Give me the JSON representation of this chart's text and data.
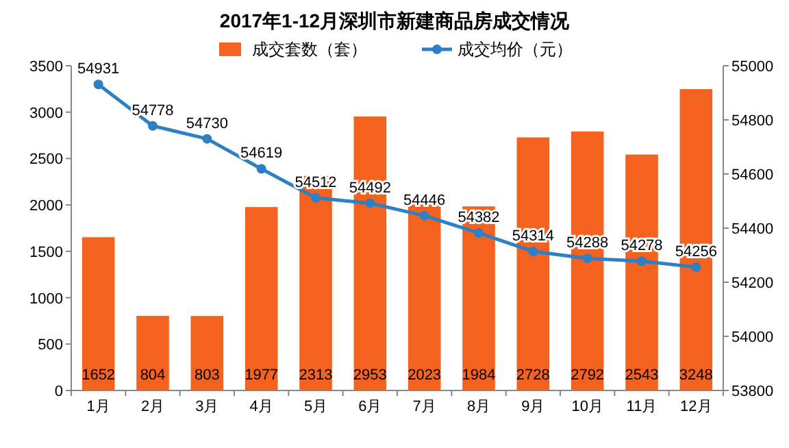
{
  "chart_data": {
    "type": "bar",
    "title": "2017年1-12月深圳市新建商品房成交情况",
    "categories": [
      "1月",
      "2月",
      "3月",
      "4月",
      "5月",
      "6月",
      "7月",
      "8月",
      "9月",
      "10月",
      "11月",
      "12月"
    ],
    "series": [
      {
        "name": "成交套数（套）",
        "color": "#f4621f",
        "values": [
          1652,
          804,
          803,
          1977,
          2313,
          2953,
          2023,
          1984,
          2728,
          2792,
          2543,
          3248
        ]
      },
      {
        "name": "成交均价（元）",
        "type": "line",
        "axis": "y2",
        "color": "#2e7fc4",
        "marker": "circle",
        "values": [
          54931,
          54778,
          54730,
          54619,
          54512,
          54492,
          54446,
          54382,
          54314,
          54288,
          54278,
          54256
        ]
      }
    ],
    "ylim": [
      0,
      3500
    ],
    "yticks": [
      0,
      500,
      1000,
      1500,
      2000,
      2500,
      3000,
      3500
    ],
    "y2lim": [
      53800,
      55000
    ],
    "y2ticks": [
      53800,
      54000,
      54200,
      54400,
      54600,
      54800,
      55000
    ],
    "data_labels": true,
    "legend": "top"
  }
}
